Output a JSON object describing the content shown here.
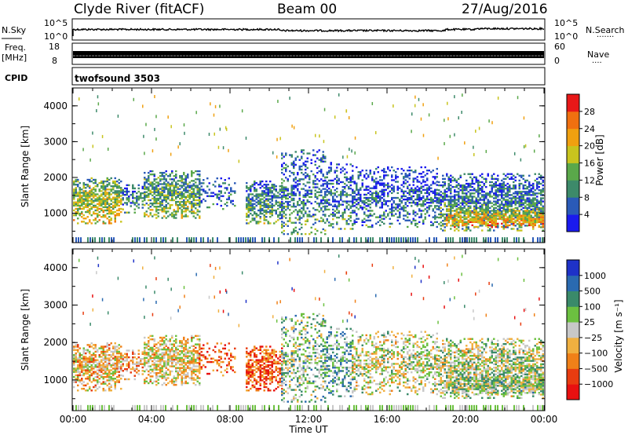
{
  "header": {
    "station": "Clyde River (fitACF)",
    "beam": "Beam 00",
    "date": "27/Aug/2016"
  },
  "side_labels": {
    "nsky": "N.Sky",
    "nsearch": "N.Search",
    "freq_line1": "Freq.",
    "freq_line2": "[MHz]",
    "nave": "Nave",
    "cpid": "CPID",
    "dots": "·······",
    "dots_short": "····"
  },
  "noise_panel": {
    "left_ticks": [
      "10^5",
      "10^0"
    ],
    "right_ticks": [
      "10^5",
      "10^0"
    ]
  },
  "freq_panel": {
    "left_ticks": [
      "18",
      "8"
    ],
    "right_ticks": [
      "60",
      "0"
    ]
  },
  "cpid_panel": {
    "text": "twofsound 3503"
  },
  "chart_data": [
    {
      "type": "heatmap",
      "name": "power",
      "xlabel": "",
      "ylabel": "Slant Range [km]",
      "ylim": [
        180,
        4500
      ],
      "yticks": [
        1000,
        2000,
        3000,
        4000
      ],
      "colorbar": {
        "label": "Power [dB]",
        "range": [
          0,
          32
        ],
        "ticks": [
          4,
          8,
          12,
          16,
          20,
          24,
          28
        ],
        "colors": [
          "#1a1aee",
          "#2a5ab8",
          "#3d8a6a",
          "#5aa84a",
          "#c8c41e",
          "#f0a010",
          "#f07010",
          "#e81818"
        ]
      }
    },
    {
      "type": "heatmap",
      "name": "velocity",
      "xlabel": "Time UT",
      "ylabel": "Slant Range [km]",
      "ylim": [
        180,
        4500
      ],
      "yticks": [
        1000,
        2000,
        3000,
        4000
      ],
      "xticks": [
        "00:00",
        "04:00",
        "08:00",
        "12:00",
        "16:00",
        "20:00",
        "00:00"
      ],
      "colorbar": {
        "label": "Velocity [m s⁻¹]",
        "ticks": [
          "1000",
          "500",
          "100",
          "25",
          "−25",
          "−100",
          "−500",
          "−1000"
        ],
        "colors": [
          "#1e32c8",
          "#2a6ab0",
          "#3a8a6a",
          "#6cc040",
          "#c8c8c8",
          "#f0b040",
          "#f08018",
          "#e83c10",
          "#e81010"
        ]
      }
    }
  ]
}
